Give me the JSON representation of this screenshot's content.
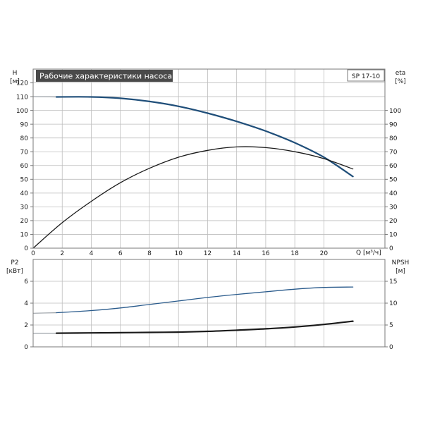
{
  "chart_data": [
    {
      "type": "line",
      "title": "Рабочие характеристики насоса",
      "model": "SP 17-10",
      "x_label": "Q [м³/ч]",
      "x_ticks": [
        0,
        2,
        4,
        6,
        8,
        10,
        12,
        14,
        16,
        18,
        20
      ],
      "xlim": [
        0,
        24.2
      ],
      "left_axis": {
        "label": "H",
        "unit": "[м]",
        "ticks": [
          0,
          10,
          20,
          30,
          40,
          50,
          60,
          70,
          80,
          90,
          100,
          110,
          120
        ],
        "lim": [
          0,
          130
        ]
      },
      "right_axis": {
        "label": "eta",
        "unit": "[%]",
        "ticks": [
          0,
          10,
          20,
          30,
          40,
          50,
          60,
          70,
          80,
          90,
          100
        ],
        "lim": [
          0,
          130
        ]
      },
      "grid": true,
      "series": [
        {
          "id": "H",
          "axis": "left",
          "color": "#1f4e79",
          "extension_color": "#9aa0a6",
          "extension_points": [
            [
              0,
              110
            ],
            [
              1.6,
              109.8
            ]
          ],
          "points": [
            [
              1.6,
              109.8
            ],
            [
              4,
              109.8
            ],
            [
              6,
              108.8
            ],
            [
              8,
              106.5
            ],
            [
              10,
              103
            ],
            [
              12,
              98
            ],
            [
              14,
              92
            ],
            [
              16,
              85
            ],
            [
              18,
              76.5
            ],
            [
              20,
              66
            ],
            [
              22,
              52
            ]
          ]
        },
        {
          "id": "eta",
          "axis": "right",
          "color": "#1a1a1a",
          "points": [
            [
              0,
              0
            ],
            [
              2,
              18.5
            ],
            [
              4,
              34
            ],
            [
              6,
              47.5
            ],
            [
              8,
              58
            ],
            [
              10,
              66
            ],
            [
              12,
              71
            ],
            [
              14,
              73.5
            ],
            [
              16,
              73
            ],
            [
              18,
              70
            ],
            [
              20,
              65
            ],
            [
              22,
              57.5
            ]
          ]
        }
      ]
    },
    {
      "type": "line",
      "xlim": [
        0,
        24.2
      ],
      "left_axis": {
        "label": "P2",
        "unit": "[кВт]",
        "ticks": [
          0,
          2,
          4,
          6
        ],
        "lim": [
          0,
          8
        ]
      },
      "right_axis": {
        "label": "NPSH",
        "unit": "[м]",
        "ticks": [
          0,
          5,
          10,
          15
        ],
        "lim": [
          0,
          20
        ]
      },
      "grid": true,
      "series": [
        {
          "id": "P2",
          "axis": "left",
          "color": "#1a1a1a",
          "extension_color": "#9aa0a6",
          "extension_points": [
            [
              0,
              1.25
            ],
            [
              1.6,
              1.25
            ]
          ],
          "points": [
            [
              1.6,
              1.25
            ],
            [
              4,
              1.28
            ],
            [
              6,
              1.3
            ],
            [
              8,
              1.32
            ],
            [
              10,
              1.35
            ],
            [
              12,
              1.42
            ],
            [
              14,
              1.52
            ],
            [
              16,
              1.65
            ],
            [
              18,
              1.82
            ],
            [
              20,
              2.05
            ],
            [
              22,
              2.35
            ]
          ]
        },
        {
          "id": "NPSH",
          "axis": "right",
          "color": "#2a5b8c",
          "extension_color": "#9aa0a6",
          "extension_points": [
            [
              0,
              7.7
            ],
            [
              1.6,
              7.8
            ]
          ],
          "points": [
            [
              1.6,
              7.8
            ],
            [
              4,
              8.3
            ],
            [
              6,
              8.9
            ],
            [
              8,
              9.7
            ],
            [
              10,
              10.5
            ],
            [
              12,
              11.3
            ],
            [
              14,
              12
            ],
            [
              16,
              12.6
            ],
            [
              18,
              13.2
            ],
            [
              20,
              13.6
            ],
            [
              22,
              13.7
            ]
          ]
        }
      ]
    }
  ]
}
